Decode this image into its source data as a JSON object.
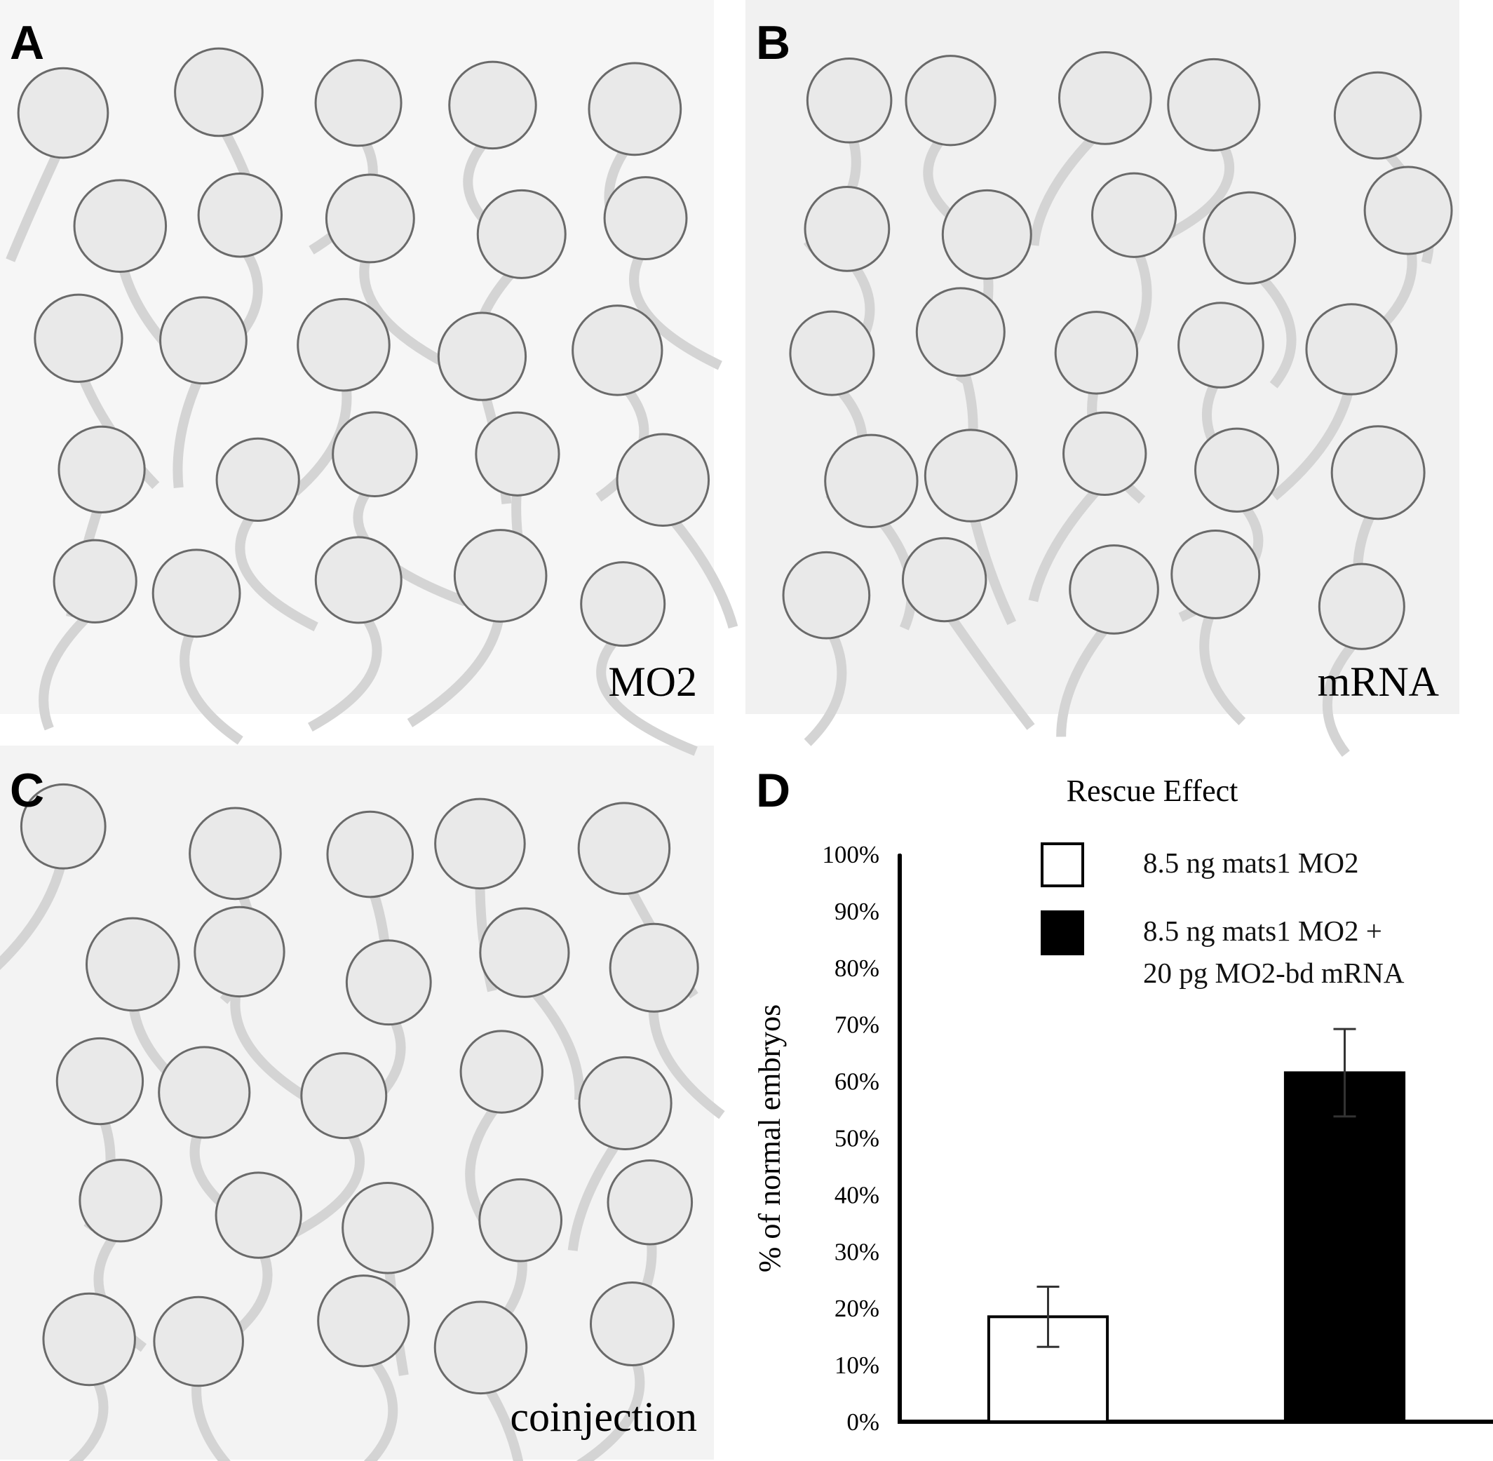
{
  "panels": [
    {
      "letter": "A",
      "caption": "MO2"
    },
    {
      "letter": "B",
      "caption": "mRNA"
    },
    {
      "letter": "C",
      "caption": "coinjection"
    }
  ],
  "chart_data": {
    "type": "bar",
    "letter": "D",
    "title": "Rescue Effect",
    "y_label": "% of normal embryos",
    "categories": [
      null
    ],
    "series": [
      {
        "name": "8.5 ng mats1 MO2",
        "color": "#ffffff",
        "values": [
          18.5
        ],
        "errors": [
          5.3
        ]
      },
      {
        "name": "8.5 ng mats1 MO2 +\n20 pg MO2-bd mRNA",
        "color": "#000000",
        "values": [
          61.5
        ],
        "errors": [
          7.7
        ]
      }
    ],
    "ylim": [
      0,
      100
    ],
    "yticks": [
      {
        "value": 0,
        "label": "0%"
      },
      {
        "value": 10,
        "label": "10%"
      },
      {
        "value": 20,
        "label": "20%"
      },
      {
        "value": 30,
        "label": "30%"
      },
      {
        "value": 40,
        "label": "40%"
      },
      {
        "value": 50,
        "label": "50%"
      },
      {
        "value": 60,
        "label": "60%"
      },
      {
        "value": 70,
        "label": "70%"
      },
      {
        "value": 80,
        "label": "80%"
      },
      {
        "value": 90,
        "label": "90%"
      },
      {
        "value": 100,
        "label": "100%"
      }
    ],
    "grid": false
  }
}
